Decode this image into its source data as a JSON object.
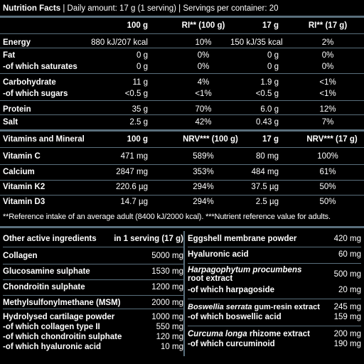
{
  "header": {
    "title": "Nutrition Facts",
    "daily": "Daily amount: 17 g (1 serving)",
    "servings": "Servings per container: 20"
  },
  "cols": {
    "c100": "100 g",
    "ri100": "RI** (100 g)",
    "c17": "17 g",
    "ri17": "RI** (17 g)"
  },
  "nutrition": [
    {
      "label": "Energy",
      "bold": true,
      "v100": "880 kJ/207 kcal",
      "ri100": "10%",
      "v17": "150 kJ/35 kcal",
      "ri17": "2%"
    },
    {
      "label": "Fat",
      "bold": true,
      "v100": "0 g",
      "ri100": "0%",
      "v17": "0 g",
      "ri17": "0%"
    },
    {
      "label": "-of which saturates",
      "bold": true,
      "v100": "0 g",
      "ri100": "0%",
      "v17": "0 g",
      "ri17": "0%"
    },
    {
      "label": "Carbohydrate",
      "bold": true,
      "v100": "11 g",
      "ri100": "4%",
      "v17": "1.9 g",
      "ri17": "<1%"
    },
    {
      "label": "-of which sugars",
      "bold": true,
      "v100": "<0.5 g",
      "ri100": "<1%",
      "v17": "<0.5 g",
      "ri17": "<1%"
    },
    {
      "label": "Protein",
      "bold": true,
      "v100": "35 g",
      "ri100": "70%",
      "v17": "6.0 g",
      "ri17": "12%"
    },
    {
      "label": "Salt",
      "bold": true,
      "v100": "2.5 g",
      "ri100": "42%",
      "v17": "0.43 g",
      "ri17": "7%"
    }
  ],
  "vitamins_header": {
    "label": "Vitamins and Mineral",
    "c100": "100 g",
    "nrv100": "NRV*** (100 g)",
    "c17": "17 g",
    "nrv17": "NRV*** (17 g)"
  },
  "vitamins": [
    {
      "label": "Vitamin C",
      "v100": "471 mg",
      "n100": "589%",
      "v17": "80 mg",
      "n17": "100%"
    },
    {
      "label": "Calcium",
      "v100": "2847 mg",
      "n100": "353%",
      "v17": "484 mg",
      "n17": "61%"
    },
    {
      "label": "Vitamin K2",
      "v100": "220.6 µg",
      "n100": "294%",
      "v17": "37.5 µg",
      "n17": "50%"
    },
    {
      "label": "Vitamin D3",
      "v100": "14.7 µg",
      "n100": "294%",
      "v17": "2.5 µg",
      "n17": "50%"
    }
  ],
  "footnote": "**Reference intake of an average adult (8400 kJ/2000 kcal). ***Nutrient reference value for adults.",
  "left_header": {
    "label": "Other active ingredients",
    "serving": "in 1 serving (17 g)"
  },
  "left_rows": [
    {
      "label": "Collagen",
      "value": "5000 mg"
    },
    {
      "label": "Glucosamine sulphate",
      "value": "1530 mg"
    },
    {
      "label": "Chondroitin sulphate",
      "value": "1200 mg"
    },
    {
      "label": "Methylsulfonylmethane (MSM)",
      "value": "2000 mg"
    }
  ],
  "left_last": {
    "lines": [
      "Hydrolysed cartilage powder",
      "-of which collagen type II",
      "-of which chondroitin sulphate",
      "-of which hyaluronic acid"
    ],
    "values": [
      "1000 mg",
      "550 mg",
      "120 mg",
      "10 mg"
    ]
  },
  "right_rows": [
    {
      "label": "Eggshell membrane powder",
      "value": "420 mg"
    },
    {
      "label": "Hyaluronic acid",
      "value": "60 mg"
    }
  ],
  "harpago": {
    "line1": "Harpagophytum procumbens",
    "line2": "root extract",
    "line3": "-of which harpagoside",
    "v1": "500 mg",
    "v2": "20 mg"
  },
  "boswellia": {
    "italic": "Boswellia serrata",
    "rest": " gum-resin extract",
    "line2": "-of which boswellic acid",
    "v1": "245 mg",
    "v2": "159 mg"
  },
  "curcuma": {
    "italic": "Curcuma longa",
    "rest": " rhizome extract",
    "line2": "-of which curcuminoid",
    "v1": "200 mg",
    "v2": "190 mg"
  }
}
